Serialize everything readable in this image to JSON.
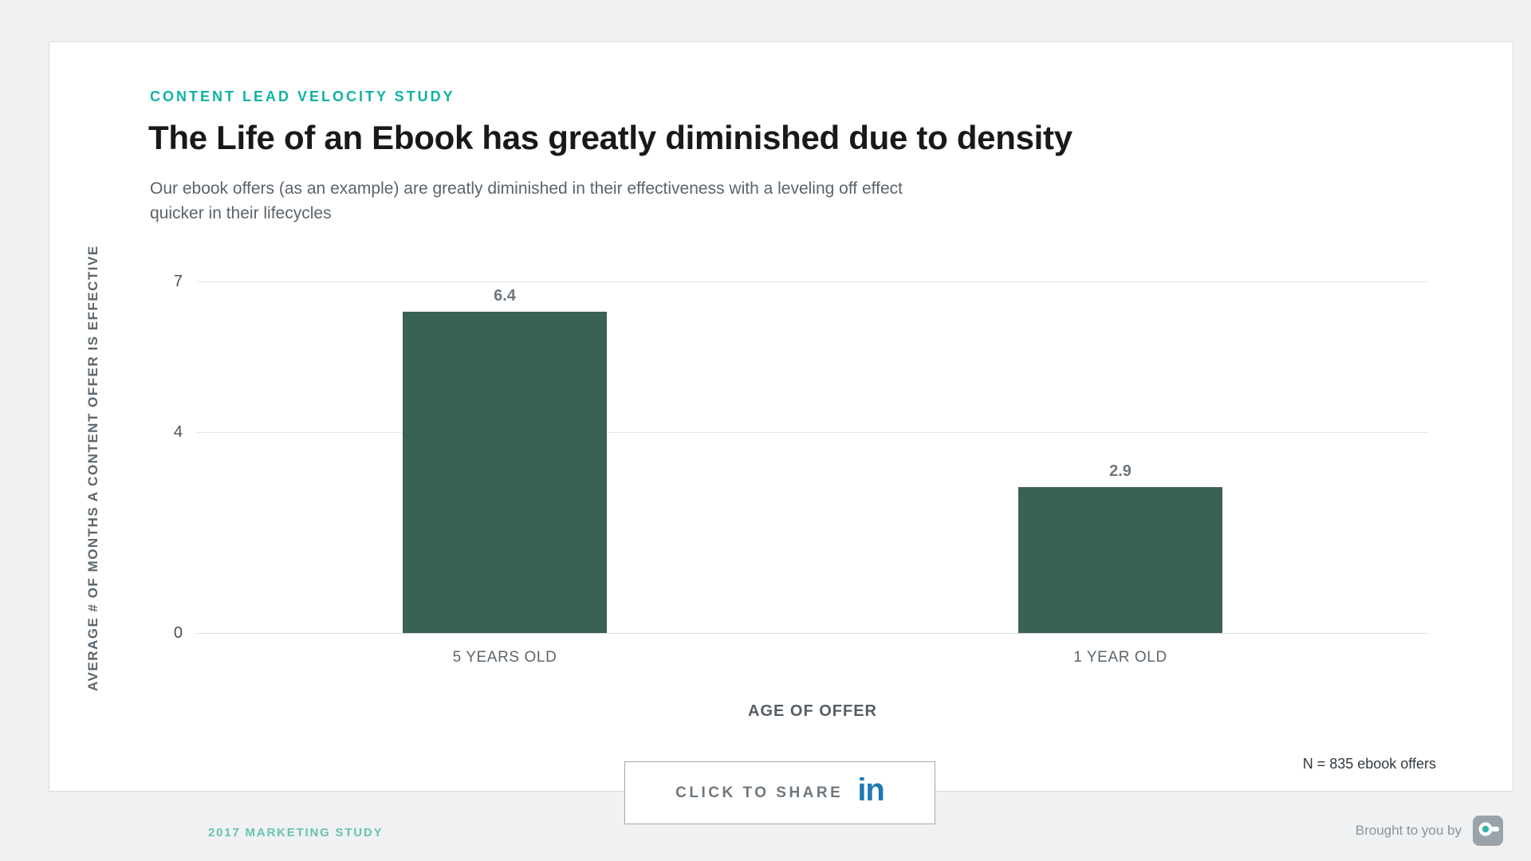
{
  "header": {
    "eyebrow": "CONTENT LEAD VELOCITY STUDY",
    "title": "The Life of an Ebook has greatly diminished due to density",
    "subtitle_line1": "Our ebook offers (as an example) are greatly diminished in their effectiveness with a leveling off effect",
    "subtitle_line2": "quicker in their lifecycles"
  },
  "chart_data": {
    "type": "bar",
    "categories": [
      "5 YEARS OLD",
      "1 YEAR OLD"
    ],
    "values": [
      6.4,
      2.9
    ],
    "value_labels": [
      "6.4",
      "2.9"
    ],
    "yticks": [
      0,
      4,
      7
    ],
    "ylim": [
      0,
      7
    ],
    "xlabel": "AGE OF OFFER",
    "ylabel": "AVERAGE # OF MONTHS A CONTENT OFFER IS EFFECTIVE",
    "note": "N = 835 ebook offers",
    "bar_color": "#3a6156",
    "grid": true,
    "legend": false
  },
  "share": {
    "label": "CLICK TO SHARE",
    "icon": "linkedin-icon",
    "icon_text": "in"
  },
  "footer": {
    "left_link": "2017 MARKETING STUDY",
    "brought_by": "Brought to you by"
  },
  "colors": {
    "accent_teal": "#10b2a2",
    "bar": "#3a6156",
    "linkedin_blue": "#2077b5",
    "footer_teal": "#68c2b3",
    "background": "#eff1f2",
    "card_border": "#d9dcde",
    "gridline": "#e4e6e8"
  }
}
